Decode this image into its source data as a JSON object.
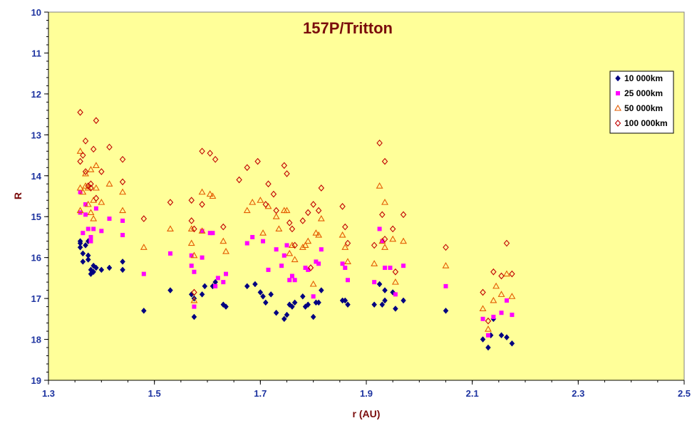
{
  "chart_data": {
    "type": "scatter",
    "title": "157P/Tritton",
    "xlabel": "r (AU)",
    "ylabel": "R",
    "xlim": [
      1.3,
      2.5
    ],
    "ylim": [
      10,
      19
    ],
    "y_reversed": true,
    "x_ticks": [
      "1.3",
      "1.5",
      "1.7",
      "1.9",
      "2.1",
      "2.3",
      "2.5"
    ],
    "y_ticks": [
      "10",
      "11",
      "12",
      "13",
      "14",
      "15",
      "16",
      "17",
      "18",
      "19"
    ],
    "grid": false,
    "legend_position": "top-right",
    "colors": {
      "plot_background": "#ffff99",
      "outer_background": "#ffffff",
      "tick_text": "#1d33a0",
      "title_text": "#7a0c0c"
    },
    "series": [
      {
        "name": "10 000km",
        "marker": "diamond-filled",
        "color": "#000080",
        "points": [
          [
            1.36,
            15.65
          ],
          [
            1.36,
            15.75
          ],
          [
            1.36,
            15.6
          ],
          [
            1.365,
            15.9
          ],
          [
            1.365,
            16.1
          ],
          [
            1.37,
            15.7
          ],
          [
            1.375,
            15.6
          ],
          [
            1.375,
            15.95
          ],
          [
            1.375,
            16.05
          ],
          [
            1.38,
            16.3
          ],
          [
            1.38,
            16.4
          ],
          [
            1.385,
            16.35
          ],
          [
            1.385,
            16.2
          ],
          [
            1.39,
            16.25
          ],
          [
            1.4,
            16.3
          ],
          [
            1.415,
            16.25
          ],
          [
            1.44,
            16.1
          ],
          [
            1.44,
            16.3
          ],
          [
            1.48,
            17.3
          ],
          [
            1.53,
            16.8
          ],
          [
            1.57,
            16.9
          ],
          [
            1.575,
            17.0
          ],
          [
            1.575,
            17.45
          ],
          [
            1.59,
            16.9
          ],
          [
            1.595,
            16.7
          ],
          [
            1.61,
            16.7
          ],
          [
            1.615,
            16.6
          ],
          [
            1.63,
            17.15
          ],
          [
            1.635,
            17.2
          ],
          [
            1.675,
            16.7
          ],
          [
            1.69,
            16.65
          ],
          [
            1.7,
            16.85
          ],
          [
            1.705,
            16.95
          ],
          [
            1.71,
            17.1
          ],
          [
            1.72,
            16.9
          ],
          [
            1.73,
            17.35
          ],
          [
            1.745,
            17.5
          ],
          [
            1.75,
            17.4
          ],
          [
            1.755,
            17.15
          ],
          [
            1.76,
            17.2
          ],
          [
            1.765,
            17.1
          ],
          [
            1.78,
            16.95
          ],
          [
            1.785,
            17.2
          ],
          [
            1.79,
            17.15
          ],
          [
            1.8,
            17.45
          ],
          [
            1.805,
            17.1
          ],
          [
            1.81,
            17.1
          ],
          [
            1.815,
            16.8
          ],
          [
            1.855,
            17.05
          ],
          [
            1.86,
            17.05
          ],
          [
            1.865,
            17.15
          ],
          [
            1.915,
            17.15
          ],
          [
            1.925,
            16.65
          ],
          [
            1.93,
            17.15
          ],
          [
            1.935,
            17.05
          ],
          [
            1.935,
            16.8
          ],
          [
            1.95,
            16.85
          ],
          [
            1.955,
            17.25
          ],
          [
            1.97,
            17.05
          ],
          [
            2.05,
            17.3
          ],
          [
            2.12,
            18.0
          ],
          [
            2.13,
            18.2
          ],
          [
            2.135,
            17.9
          ],
          [
            2.14,
            17.5
          ],
          [
            2.155,
            17.9
          ],
          [
            2.165,
            17.95
          ],
          [
            2.175,
            18.1
          ]
        ]
      },
      {
        "name": "25 000km",
        "marker": "square-filled",
        "color": "#ff00ff",
        "points": [
          [
            1.36,
            14.4
          ],
          [
            1.36,
            14.9
          ],
          [
            1.365,
            15.4
          ],
          [
            1.37,
            14.95
          ],
          [
            1.37,
            14.7
          ],
          [
            1.375,
            15.3
          ],
          [
            1.38,
            15.5
          ],
          [
            1.38,
            15.6
          ],
          [
            1.385,
            15.3
          ],
          [
            1.39,
            14.8
          ],
          [
            1.4,
            15.35
          ],
          [
            1.415,
            15.05
          ],
          [
            1.44,
            15.1
          ],
          [
            1.44,
            15.45
          ],
          [
            1.48,
            16.4
          ],
          [
            1.53,
            15.9
          ],
          [
            1.57,
            15.95
          ],
          [
            1.57,
            16.2
          ],
          [
            1.575,
            16.35
          ],
          [
            1.575,
            17.2
          ],
          [
            1.59,
            15.35
          ],
          [
            1.59,
            16.0
          ],
          [
            1.605,
            15.4
          ],
          [
            1.61,
            15.4
          ],
          [
            1.615,
            16.7
          ],
          [
            1.62,
            16.5
          ],
          [
            1.63,
            16.6
          ],
          [
            1.635,
            16.4
          ],
          [
            1.675,
            15.65
          ],
          [
            1.685,
            15.5
          ],
          [
            1.705,
            15.6
          ],
          [
            1.715,
            16.3
          ],
          [
            1.73,
            15.8
          ],
          [
            1.74,
            16.2
          ],
          [
            1.745,
            15.95
          ],
          [
            1.75,
            15.7
          ],
          [
            1.755,
            16.55
          ],
          [
            1.76,
            16.45
          ],
          [
            1.765,
            16.55
          ],
          [
            1.785,
            16.25
          ],
          [
            1.79,
            16.3
          ],
          [
            1.8,
            16.95
          ],
          [
            1.805,
            16.1
          ],
          [
            1.81,
            16.15
          ],
          [
            1.815,
            15.8
          ],
          [
            1.855,
            16.15
          ],
          [
            1.86,
            16.25
          ],
          [
            1.865,
            16.55
          ],
          [
            1.915,
            16.6
          ],
          [
            1.925,
            15.3
          ],
          [
            1.93,
            15.6
          ],
          [
            1.935,
            16.25
          ],
          [
            1.945,
            16.25
          ],
          [
            1.955,
            16.9
          ],
          [
            1.97,
            16.2
          ],
          [
            2.05,
            16.7
          ],
          [
            2.12,
            17.5
          ],
          [
            2.13,
            17.9
          ],
          [
            2.14,
            17.45
          ],
          [
            2.155,
            17.35
          ],
          [
            2.165,
            17.05
          ],
          [
            2.175,
            17.4
          ]
        ]
      },
      {
        "name": "50 000km",
        "marker": "triangle-open",
        "color": "#e35b00",
        "points": [
          [
            1.36,
            13.4
          ],
          [
            1.36,
            14.3
          ],
          [
            1.36,
            14.85
          ],
          [
            1.365,
            14.4
          ],
          [
            1.37,
            13.95
          ],
          [
            1.37,
            14.25
          ],
          [
            1.375,
            14.7
          ],
          [
            1.375,
            14.3
          ],
          [
            1.38,
            14.9
          ],
          [
            1.38,
            13.85
          ],
          [
            1.385,
            14.6
          ],
          [
            1.385,
            15.05
          ],
          [
            1.39,
            14.3
          ],
          [
            1.39,
            13.75
          ],
          [
            1.4,
            14.65
          ],
          [
            1.415,
            14.2
          ],
          [
            1.44,
            14.4
          ],
          [
            1.44,
            14.85
          ],
          [
            1.48,
            15.75
          ],
          [
            1.53,
            15.3
          ],
          [
            1.57,
            15.3
          ],
          [
            1.57,
            15.65
          ],
          [
            1.575,
            15.95
          ],
          [
            1.575,
            17.05
          ],
          [
            1.59,
            14.4
          ],
          [
            1.59,
            15.35
          ],
          [
            1.605,
            14.45
          ],
          [
            1.61,
            14.5
          ],
          [
            1.63,
            15.6
          ],
          [
            1.635,
            15.85
          ],
          [
            1.675,
            14.85
          ],
          [
            1.685,
            14.65
          ],
          [
            1.7,
            14.6
          ],
          [
            1.705,
            15.4
          ],
          [
            1.715,
            14.75
          ],
          [
            1.73,
            15.0
          ],
          [
            1.735,
            15.3
          ],
          [
            1.745,
            14.85
          ],
          [
            1.75,
            14.85
          ],
          [
            1.755,
            15.9
          ],
          [
            1.76,
            15.7
          ],
          [
            1.765,
            16.05
          ],
          [
            1.78,
            15.75
          ],
          [
            1.785,
            15.7
          ],
          [
            1.79,
            15.6
          ],
          [
            1.8,
            16.65
          ],
          [
            1.805,
            15.4
          ],
          [
            1.81,
            15.45
          ],
          [
            1.815,
            15.05
          ],
          [
            1.855,
            15.45
          ],
          [
            1.86,
            15.75
          ],
          [
            1.865,
            16.1
          ],
          [
            1.915,
            16.15
          ],
          [
            1.925,
            14.25
          ],
          [
            1.93,
            15.6
          ],
          [
            1.935,
            14.65
          ],
          [
            1.935,
            15.75
          ],
          [
            1.95,
            15.55
          ],
          [
            1.955,
            16.6
          ],
          [
            1.97,
            15.6
          ],
          [
            2.05,
            16.2
          ],
          [
            2.12,
            17.25
          ],
          [
            2.13,
            17.75
          ],
          [
            2.14,
            17.05
          ],
          [
            2.145,
            16.7
          ],
          [
            2.155,
            16.9
          ],
          [
            2.165,
            16.4
          ],
          [
            2.175,
            16.95
          ]
        ]
      },
      {
        "name": "100 000km",
        "marker": "diamond-open",
        "color": "#c00000",
        "points": [
          [
            1.36,
            12.45
          ],
          [
            1.36,
            13.65
          ],
          [
            1.365,
            13.5
          ],
          [
            1.37,
            13.15
          ],
          [
            1.37,
            13.9
          ],
          [
            1.375,
            14.25
          ],
          [
            1.38,
            14.2
          ],
          [
            1.38,
            14.3
          ],
          [
            1.385,
            13.35
          ],
          [
            1.39,
            12.65
          ],
          [
            1.39,
            14.55
          ],
          [
            1.4,
            13.9
          ],
          [
            1.415,
            13.3
          ],
          [
            1.44,
            13.6
          ],
          [
            1.44,
            14.15
          ],
          [
            1.48,
            15.05
          ],
          [
            1.53,
            14.65
          ],
          [
            1.57,
            14.6
          ],
          [
            1.57,
            15.1
          ],
          [
            1.575,
            15.3
          ],
          [
            1.575,
            16.85
          ],
          [
            1.59,
            13.4
          ],
          [
            1.59,
            14.7
          ],
          [
            1.605,
            13.45
          ],
          [
            1.615,
            13.6
          ],
          [
            1.63,
            15.25
          ],
          [
            1.66,
            14.1
          ],
          [
            1.675,
            13.8
          ],
          [
            1.695,
            13.65
          ],
          [
            1.71,
            14.7
          ],
          [
            1.715,
            14.2
          ],
          [
            1.725,
            14.45
          ],
          [
            1.73,
            14.85
          ],
          [
            1.745,
            13.75
          ],
          [
            1.75,
            13.95
          ],
          [
            1.755,
            15.15
          ],
          [
            1.76,
            15.3
          ],
          [
            1.765,
            15.7
          ],
          [
            1.78,
            15.1
          ],
          [
            1.79,
            14.9
          ],
          [
            1.795,
            16.25
          ],
          [
            1.8,
            14.7
          ],
          [
            1.81,
            14.85
          ],
          [
            1.815,
            14.3
          ],
          [
            1.855,
            14.75
          ],
          [
            1.86,
            15.25
          ],
          [
            1.865,
            15.65
          ],
          [
            1.915,
            15.7
          ],
          [
            1.925,
            13.2
          ],
          [
            1.93,
            14.95
          ],
          [
            1.935,
            13.65
          ],
          [
            1.935,
            15.55
          ],
          [
            1.95,
            15.3
          ],
          [
            1.955,
            16.35
          ],
          [
            1.97,
            14.95
          ],
          [
            2.05,
            15.75
          ],
          [
            2.12,
            16.85
          ],
          [
            2.13,
            17.55
          ],
          [
            2.14,
            16.35
          ],
          [
            2.155,
            16.45
          ],
          [
            2.165,
            15.65
          ],
          [
            2.175,
            16.4
          ]
        ]
      }
    ]
  }
}
